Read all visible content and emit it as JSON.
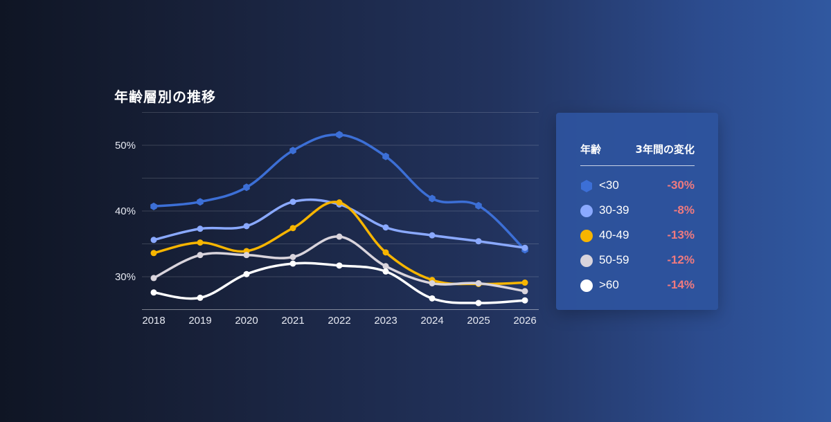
{
  "chart_data": {
    "type": "line",
    "title": "年齢層別の推移",
    "x": [
      2018,
      2019,
      2020,
      2021,
      2022,
      2023,
      2024,
      2025,
      2026
    ],
    "y_ticks": [
      30,
      40,
      50
    ],
    "y_tick_labels": [
      "30%",
      "40%",
      "50%"
    ],
    "ylim": [
      25,
      55
    ],
    "grid": true,
    "legend_position": "right",
    "series": [
      {
        "name": "<30",
        "change": "-30%",
        "color": "#3c6fd6",
        "marker": "hexagon",
        "values": [
          40.7,
          41.4,
          43.6,
          49.2,
          51.6,
          48.3,
          41.9,
          40.8,
          34.1
        ]
      },
      {
        "name": "30-39",
        "change": "-8%",
        "color": "#8aa9ff",
        "marker": "circle",
        "values": [
          35.6,
          37.3,
          37.7,
          41.4,
          41.0,
          37.5,
          36.3,
          35.4,
          34.4
        ]
      },
      {
        "name": "40-49",
        "change": "-13%",
        "color": "#f7b500",
        "marker": "circle",
        "values": [
          33.6,
          35.2,
          33.9,
          37.4,
          41.3,
          33.7,
          29.5,
          28.9,
          29.1
        ]
      },
      {
        "name": "50-59",
        "change": "-12%",
        "color": "#d9d4dc",
        "marker": "circle",
        "values": [
          29.8,
          33.3,
          33.3,
          33.0,
          36.1,
          31.6,
          29.0,
          29.0,
          27.8
        ]
      },
      {
        "name": ">60",
        "change": "-14%",
        "color": "#ffffff",
        "marker": "circle",
        "values": [
          27.6,
          26.8,
          30.4,
          32.0,
          31.7,
          30.8,
          26.7,
          26.0,
          26.4
        ]
      }
    ]
  },
  "legend": {
    "header_age": "年齢",
    "header_change": "3年間の変化"
  }
}
